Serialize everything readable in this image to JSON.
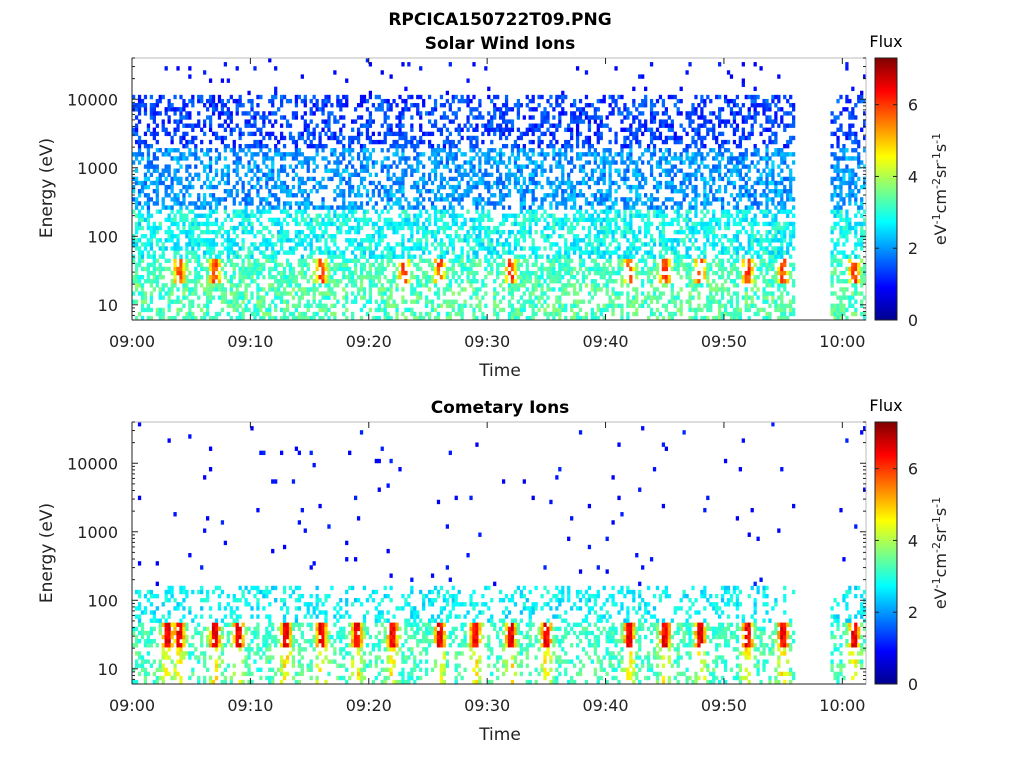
{
  "figure_title": "RPCICA150722T09.PNG",
  "chart_data": [
    {
      "type": "heatmap",
      "title": "Solar Wind Ions",
      "xlabel": "Time",
      "ylabel": "Energy (eV)",
      "y_scale": "log",
      "x_ticks": [
        "09:00",
        "09:10",
        "09:20",
        "09:30",
        "09:40",
        "09:50",
        "10:00"
      ],
      "y_ticks": [
        10,
        100,
        1000,
        10000
      ],
      "y_tick_labels": [
        "10",
        "100",
        "1000",
        "10000"
      ],
      "xlim": [
        "09:00",
        "10:02"
      ],
      "ylim": [
        6,
        40000
      ],
      "data_gap": [
        "09:56",
        "09:59"
      ],
      "high_flux_times": [
        "09:04",
        "09:07",
        "09:16",
        "09:23",
        "09:26",
        "09:32",
        "09:42",
        "09:45",
        "09:48",
        "09:52",
        "09:55",
        "10:01"
      ],
      "colorbar": {
        "title": "Flux",
        "label": "eV-1cm-2sr-1s-1",
        "label_parts": [
          {
            "base": "eV",
            "exp": "-1"
          },
          {
            "base": "cm",
            "exp": "-2"
          },
          {
            "base": "sr",
            "exp": "-1"
          },
          {
            "base": "s",
            "exp": "-1"
          }
        ],
        "range": [
          0,
          7.3
        ],
        "ticks": [
          0,
          2,
          4,
          6
        ],
        "tick_labels": [
          "0",
          "2",
          "4",
          "6"
        ],
        "colormap": "jet"
      }
    },
    {
      "type": "heatmap",
      "title": "Cometary Ions",
      "xlabel": "Time",
      "ylabel": "Energy (eV)",
      "y_scale": "log",
      "x_ticks": [
        "09:00",
        "09:10",
        "09:20",
        "09:30",
        "09:40",
        "09:50",
        "10:00"
      ],
      "y_ticks": [
        10,
        100,
        1000,
        10000
      ],
      "y_tick_labels": [
        "10",
        "100",
        "1000",
        "10000"
      ],
      "xlim": [
        "09:00",
        "10:02"
      ],
      "ylim": [
        6,
        40000
      ],
      "data_gap": [
        "09:56",
        "09:59"
      ],
      "high_flux_times": [
        "09:03",
        "09:04",
        "09:07",
        "09:09",
        "09:13",
        "09:16",
        "09:19",
        "09:22",
        "09:26",
        "09:29",
        "09:32",
        "09:35",
        "09:42",
        "09:45",
        "09:48",
        "09:52",
        "09:55",
        "10:01"
      ],
      "colorbar": {
        "title": "Flux",
        "label": "eV-1cm-2sr-1s-1",
        "label_parts": [
          {
            "base": "eV",
            "exp": "-1"
          },
          {
            "base": "cm",
            "exp": "-2"
          },
          {
            "base": "sr",
            "exp": "-1"
          },
          {
            "base": "s",
            "exp": "-1"
          }
        ],
        "range": [
          0,
          7.3
        ],
        "ticks": [
          0,
          2,
          4,
          6
        ],
        "tick_labels": [
          "0",
          "2",
          "4",
          "6"
        ],
        "colormap": "jet"
      }
    }
  ]
}
